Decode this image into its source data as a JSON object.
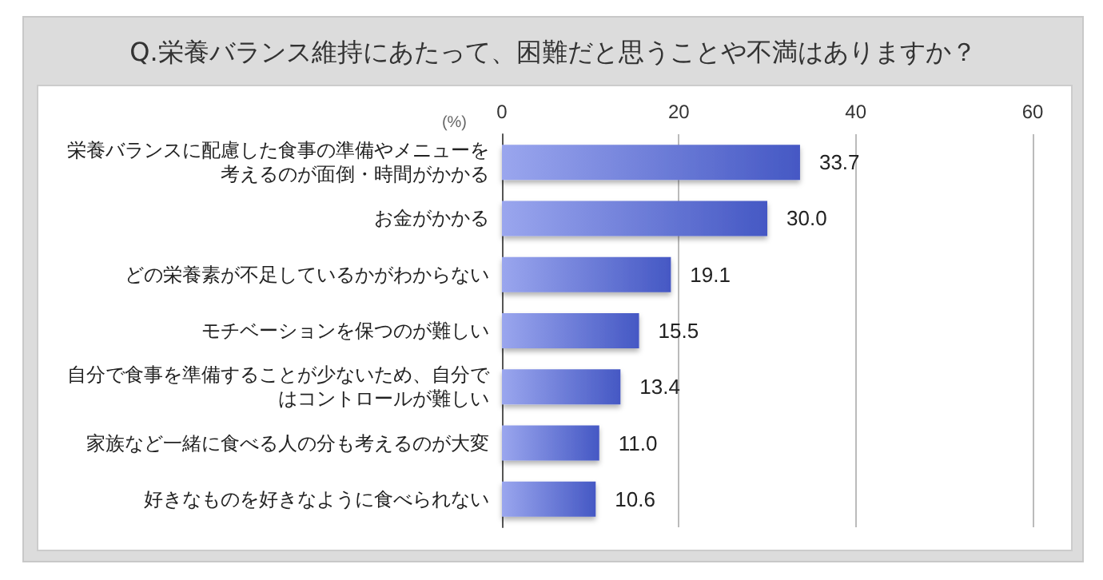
{
  "chart_data": {
    "type": "bar",
    "orientation": "horizontal",
    "title": "Q.栄養バランス維持にあたって、困難だと思うことや不満はありますか？",
    "xlabel": "(%)",
    "categories": [
      "栄養バランスに配慮した食事の準備やメニューを考えるのが面倒・時間がかかる",
      "お金がかかる",
      "どの栄養素が不足しているかがわからない",
      "モチベーションを保つのが難しい",
      "自分で食事を準備することが少ないため、自分ではコントロールが難しい",
      "家族など一緒に食べる人の分も考えるのが大変",
      "好きなものを好きなように食べられない"
    ],
    "values": [
      33.7,
      30.0,
      19.1,
      15.5,
      13.4,
      11.0,
      10.6
    ],
    "value_labels": [
      "33.7",
      "30.0",
      "19.1",
      "15.5",
      "13.4",
      "11.0",
      "10.6"
    ],
    "color": "#4558c4",
    "xlim": [
      0,
      60
    ],
    "xticks": [
      0,
      20,
      40,
      60
    ],
    "grid": "x"
  }
}
